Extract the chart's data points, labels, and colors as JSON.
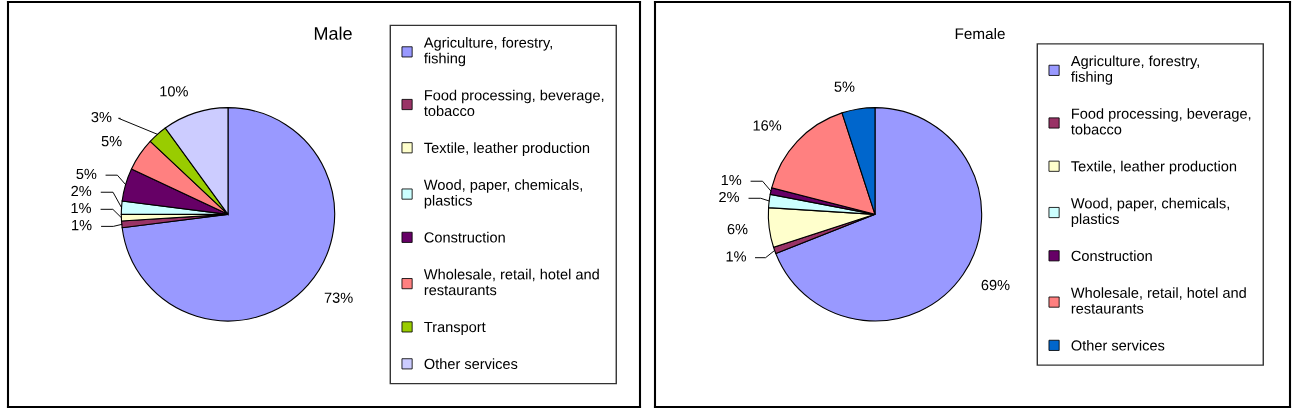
{
  "chart_data": [
    {
      "type": "pie",
      "title": "Male",
      "categories": [
        "Agriculture, forestry, fishing",
        "Food processing, beverage, tobacco",
        "Textile, leather production",
        "Wood, paper, chemicals, plastics",
        "Construction",
        "Wholesale, retail, hotel and restaurants",
        "Transport",
        "Other services"
      ],
      "values": [
        73,
        1,
        1,
        2,
        5,
        5,
        3,
        10
      ],
      "value_labels": [
        "73%",
        "1%",
        "1%",
        "2%",
        "5%",
        "5%",
        "3%",
        "10%"
      ],
      "colors": [
        "#9999ff",
        "#993366",
        "#ffffcc",
        "#ccffff",
        "#660066",
        "#ff8080",
        "#99cc00",
        "#ccccff"
      ],
      "legend": "right"
    },
    {
      "type": "pie",
      "title": "Female",
      "categories": [
        "Agriculture, forestry, fishing",
        "Food processing, beverage, tobacco",
        "Textile, leather production",
        "Wood, paper, chemicals, plastics",
        "Construction",
        "Wholesale, retail, hotel and restaurants",
        "Other services"
      ],
      "values": [
        69,
        1,
        6,
        2,
        1,
        16,
        5
      ],
      "value_labels": [
        "69%",
        "1%",
        "6%",
        "2%",
        "1%",
        "16%",
        "5%"
      ],
      "colors": [
        "#9999ff",
        "#993366",
        "#ffffcc",
        "#ccffff",
        "#660066",
        "#ff8080",
        "#0066cc"
      ],
      "legend": "right"
    }
  ]
}
